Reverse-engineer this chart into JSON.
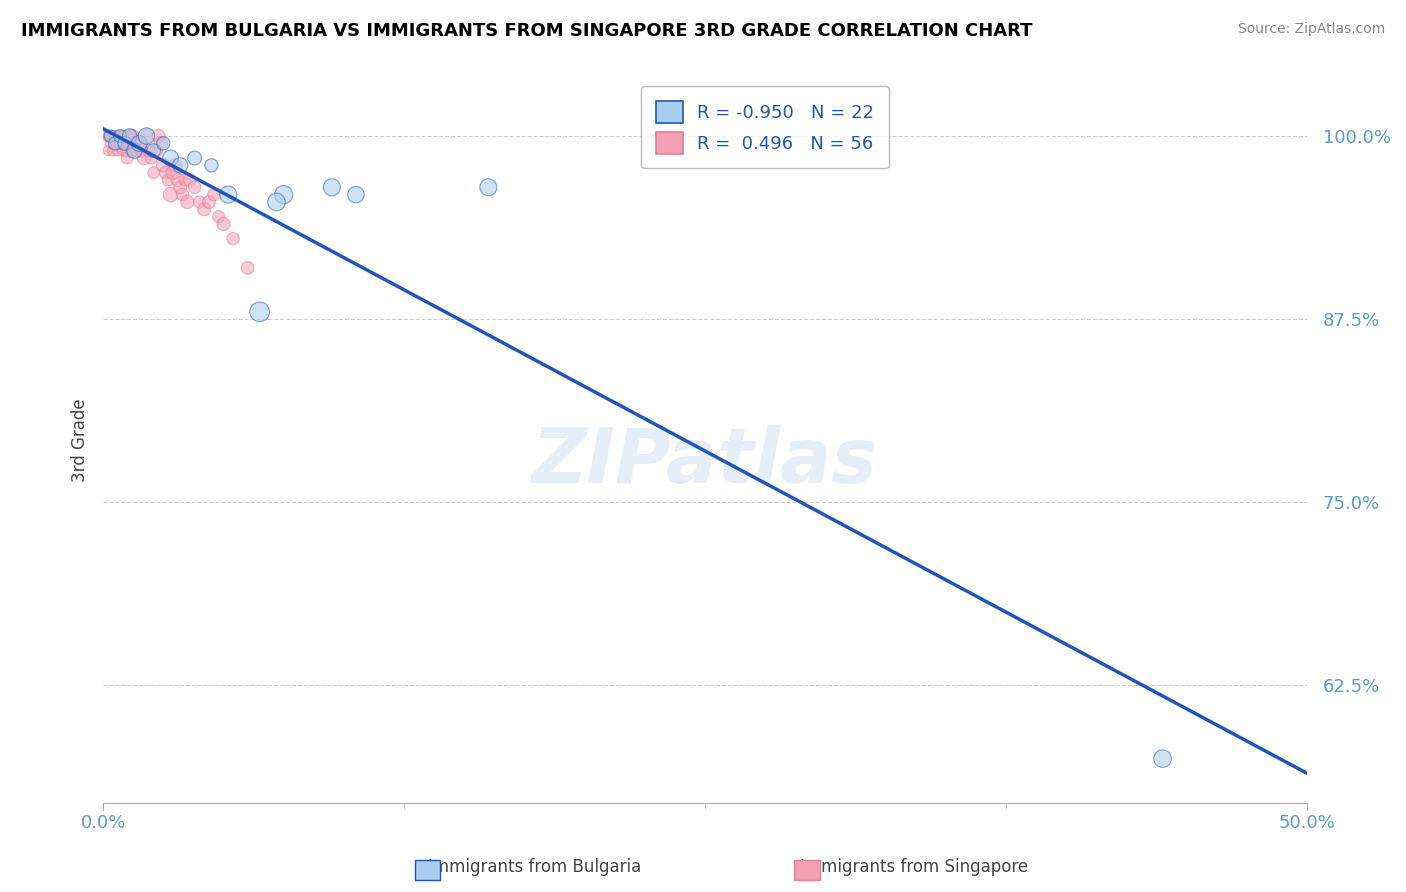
{
  "title": "IMMIGRANTS FROM BULGARIA VS IMMIGRANTS FROM SINGAPORE 3RD GRADE CORRELATION CHART",
  "source": "Source: ZipAtlas.com",
  "ylabel": "3rd Grade",
  "ytick_labels": [
    "62.5%",
    "75.0%",
    "87.5%",
    "100.0%"
  ],
  "ytick_values": [
    0.625,
    0.75,
    0.875,
    1.0
  ],
  "xlim": [
    0.0,
    0.5
  ],
  "ylim": [
    0.545,
    1.04
  ],
  "blue_R": -0.95,
  "blue_N": 22,
  "pink_R": 0.496,
  "pink_N": 56,
  "blue_color": "#A8CDED",
  "pink_color": "#F4A0B4",
  "trend_line_color": "#2255BB",
  "pink_trend_color": "#E08090",
  "watermark": "ZIPatlas",
  "blue_trend_x0": 0.0,
  "blue_trend_y0": 1.005,
  "blue_trend_x1": 0.5,
  "blue_trend_y1": 0.565,
  "blue_scatter_x": [
    0.003,
    0.005,
    0.007,
    0.009,
    0.011,
    0.013,
    0.015,
    0.018,
    0.021,
    0.025,
    0.028,
    0.032,
    0.038,
    0.045,
    0.052,
    0.065,
    0.075,
    0.072,
    0.095,
    0.105,
    0.44,
    0.16
  ],
  "blue_scatter_y": [
    1.0,
    0.995,
    1.0,
    0.995,
    1.0,
    0.99,
    0.995,
    1.0,
    0.99,
    0.995,
    0.985,
    0.98,
    0.985,
    0.98,
    0.96,
    0.88,
    0.96,
    0.955,
    0.965,
    0.96,
    0.575,
    0.965
  ],
  "blue_scatter_sizes": [
    80,
    90,
    85,
    100,
    110,
    120,
    130,
    140,
    100,
    90,
    130,
    120,
    100,
    90,
    150,
    200,
    170,
    160,
    150,
    140,
    160,
    150
  ],
  "pink_scatter_x": [
    0.001,
    0.002,
    0.002,
    0.003,
    0.003,
    0.004,
    0.004,
    0.005,
    0.005,
    0.006,
    0.006,
    0.007,
    0.007,
    0.008,
    0.008,
    0.009,
    0.009,
    0.01,
    0.01,
    0.011,
    0.011,
    0.012,
    0.012,
    0.013,
    0.014,
    0.015,
    0.016,
    0.017,
    0.018,
    0.019,
    0.02,
    0.021,
    0.022,
    0.023,
    0.024,
    0.025,
    0.026,
    0.027,
    0.028,
    0.029,
    0.03,
    0.031,
    0.032,
    0.033,
    0.034,
    0.035,
    0.036,
    0.038,
    0.04,
    0.042,
    0.044,
    0.046,
    0.048,
    0.05,
    0.054,
    0.06
  ],
  "pink_scatter_y": [
    1.0,
    1.0,
    0.99,
    1.0,
    0.995,
    1.0,
    0.99,
    1.0,
    0.995,
    1.0,
    0.99,
    1.0,
    0.995,
    0.99,
    1.0,
    0.995,
    1.0,
    0.99,
    0.985,
    1.0,
    0.995,
    0.99,
    1.0,
    0.995,
    0.99,
    0.995,
    0.99,
    0.985,
    1.0,
    0.99,
    0.985,
    0.975,
    0.99,
    1.0,
    0.995,
    0.98,
    0.975,
    0.97,
    0.96,
    0.975,
    0.98,
    0.97,
    0.965,
    0.96,
    0.97,
    0.955,
    0.97,
    0.965,
    0.955,
    0.95,
    0.955,
    0.96,
    0.945,
    0.94,
    0.93,
    0.91
  ],
  "pink_scatter_sizes": [
    50,
    45,
    48,
    55,
    52,
    60,
    58,
    65,
    62,
    50,
    55,
    70,
    65,
    55,
    60,
    65,
    70,
    80,
    75,
    85,
    90,
    95,
    100,
    80,
    75,
    85,
    90,
    95,
    100,
    80,
    75,
    70,
    85,
    90,
    95,
    100,
    80,
    75,
    110,
    100,
    95,
    90,
    85,
    80,
    75,
    90,
    85,
    80,
    75,
    90,
    85,
    80,
    75,
    90,
    80,
    85
  ]
}
